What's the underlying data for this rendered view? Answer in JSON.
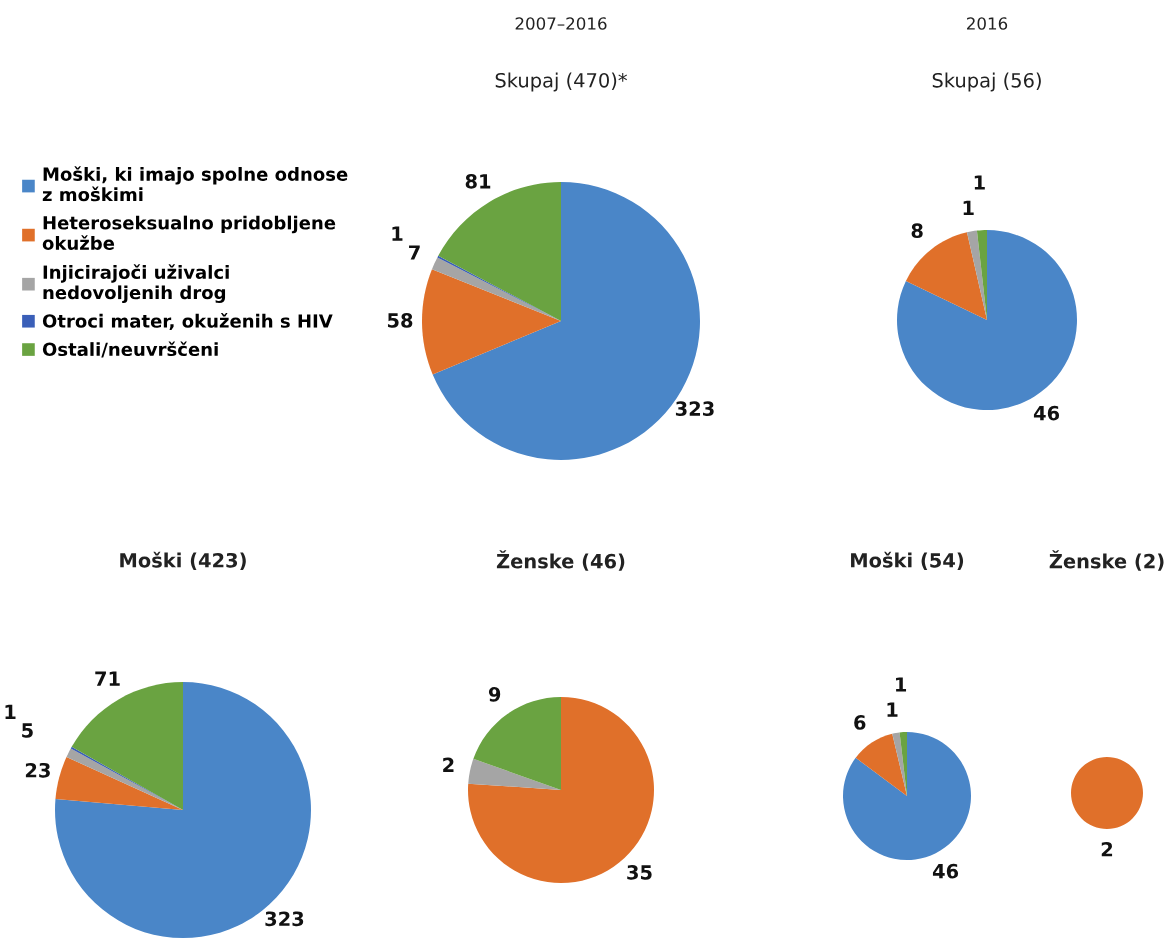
{
  "chart_data": [
    {
      "type": "pie",
      "subtitle": "2007–2016",
      "title": "Skupaj (470)*",
      "categories": [
        "Moški, ki imajo spolne odnose z moškimi",
        "Heteroseksualno pridobljene okužbe",
        "Injicirajoči uživalci nedovoljenih drog",
        "Otroci mater, okuženih s HIV",
        "Ostali/neuvrščeni"
      ],
      "values": [
        323,
        58,
        7,
        1,
        81
      ],
      "colors": [
        "#4a86c8",
        "#e0702a",
        "#a5a5a5",
        "#3a5fb8",
        "#6aa341"
      ],
      "data_labels": true,
      "legend": "left"
    },
    {
      "type": "pie",
      "subtitle": "2016",
      "title": "Skupaj (56)",
      "values": [
        46,
        8,
        1,
        0,
        1
      ],
      "colors": [
        "#4a86c8",
        "#e0702a",
        "#a5a5a5",
        "#3a5fb8",
        "#6aa341"
      ],
      "value_labels": [
        "46",
        "8",
        "1",
        null,
        "1"
      ]
    },
    {
      "type": "pie",
      "title": "Moški (423)",
      "values": [
        323,
        23,
        5,
        1,
        71
      ],
      "colors": [
        "#4a86c8",
        "#e0702a",
        "#a5a5a5",
        "#3a5fb8",
        "#6aa341"
      ],
      "data_labels": true
    },
    {
      "type": "pie",
      "title": "Ženske (46)",
      "values": [
        0,
        35,
        2,
        0,
        9
      ],
      "colors": [
        "#4a86c8",
        "#e0702a",
        "#a5a5a5",
        "#3a5fb8",
        "#6aa341"
      ],
      "value_labels": [
        null,
        "35",
        "2",
        null,
        "9"
      ]
    },
    {
      "type": "pie",
      "title": "Moški (54)",
      "values": [
        46,
        6,
        1,
        0,
        1
      ],
      "colors": [
        "#4a86c8",
        "#e0702a",
        "#a5a5a5",
        "#3a5fb8",
        "#6aa341"
      ],
      "value_labels": [
        "46",
        "6",
        "1",
        null,
        "1"
      ]
    },
    {
      "type": "pie",
      "title": "Ženske (2)",
      "values": [
        0,
        2,
        0,
        0,
        0
      ],
      "colors": [
        "#4a86c8",
        "#e0702a",
        "#a5a5a5",
        "#3a5fb8",
        "#6aa341"
      ],
      "value_labels": [
        null,
        "2",
        null,
        null,
        null
      ]
    }
  ]
}
